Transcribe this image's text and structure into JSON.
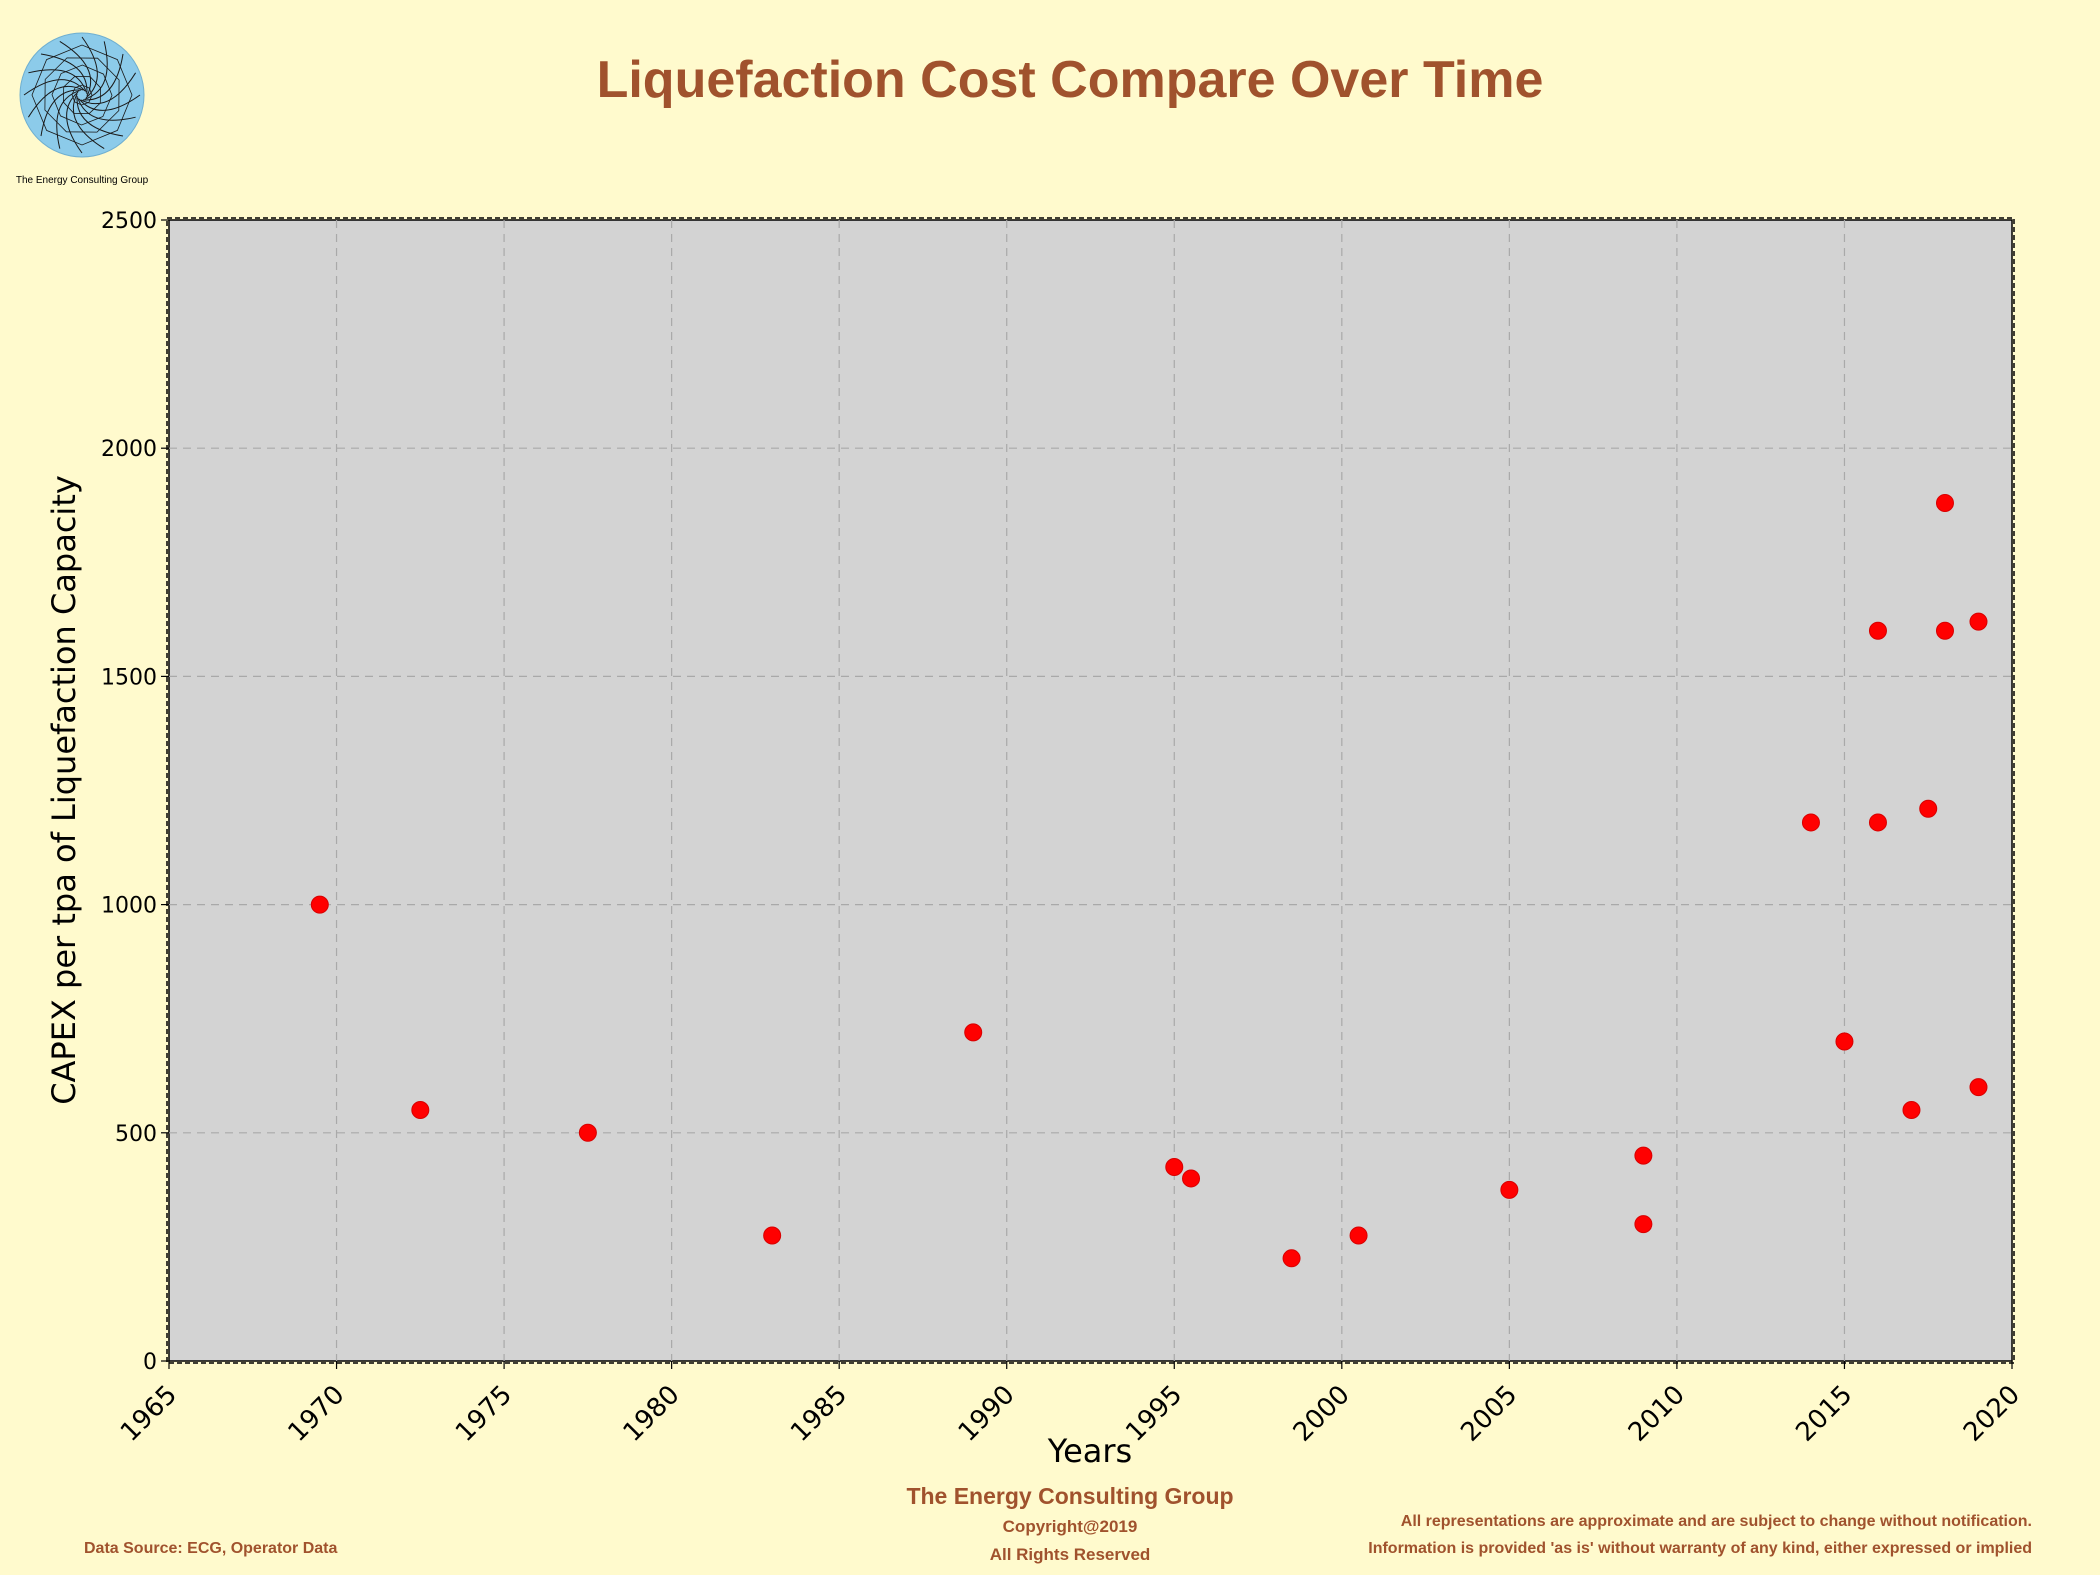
{
  "logo": {
    "caption": "The Energy Consulting Group",
    "icon": "spiral-logo-icon"
  },
  "footer": {
    "company": "The Energy Consulting Group",
    "copyright": "Copyright@2019",
    "rights": "All Rights Reserved",
    "data_source": "Data Source:  ECG, Operator Data",
    "disclaimer_1": "All representations are approximate and are subject to change without notification.",
    "disclaimer_2": "Information is provided 'as is' without warranty of any kind, either expressed or implied"
  },
  "colors": {
    "background": "#FFFACD",
    "plot_area": "#D3D3D3",
    "title": "#A0522D",
    "marker": "#FF0000",
    "grid": "#A9A9A9"
  },
  "chart_data": {
    "type": "scatter",
    "title": "Liquefaction Cost Compare Over Time",
    "xlabel": "Years",
    "ylabel": "CAPEX per tpa of Liquefaction Capacity",
    "xlim": [
      1965,
      2020
    ],
    "ylim": [
      0,
      2500
    ],
    "xticks": [
      1965,
      1970,
      1975,
      1980,
      1985,
      1990,
      1995,
      2000,
      2005,
      2010,
      2015,
      2020
    ],
    "yticks": [
      0,
      500,
      1000,
      1500,
      2000,
      2500
    ],
    "grid": true,
    "series": [
      {
        "points": [
          {
            "x": 1969.5,
            "y": 1000
          },
          {
            "x": 1972.5,
            "y": 550
          },
          {
            "x": 1977.5,
            "y": 500
          },
          {
            "x": 1983,
            "y": 275
          },
          {
            "x": 1989,
            "y": 720
          },
          {
            "x": 1995,
            "y": 425
          },
          {
            "x": 1995.5,
            "y": 400
          },
          {
            "x": 1998.5,
            "y": 225
          },
          {
            "x": 2000.5,
            "y": 275
          },
          {
            "x": 2005,
            "y": 375
          },
          {
            "x": 2009,
            "y": 450
          },
          {
            "x": 2009,
            "y": 300
          },
          {
            "x": 2014,
            "y": 1180
          },
          {
            "x": 2015,
            "y": 700
          },
          {
            "x": 2016,
            "y": 1600
          },
          {
            "x": 2016,
            "y": 1180
          },
          {
            "x": 2017,
            "y": 550
          },
          {
            "x": 2017.5,
            "y": 1210
          },
          {
            "x": 2018,
            "y": 1880
          },
          {
            "x": 2018,
            "y": 1600
          },
          {
            "x": 2019,
            "y": 1620
          },
          {
            "x": 2019,
            "y": 600
          }
        ]
      }
    ]
  }
}
